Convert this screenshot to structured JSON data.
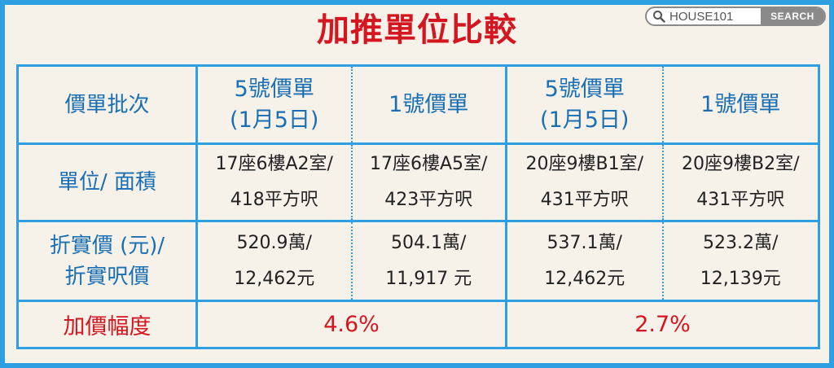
{
  "title": "加推單位比較",
  "search": {
    "brand": "HOUSE101",
    "button_label": "SEARCH",
    "icon": "search-icon"
  },
  "colors": {
    "frame": "#2e9fe0",
    "title": "#d3161f",
    "header_text": "#1a6fb4",
    "background": "#f6f1e9"
  },
  "table": {
    "header": {
      "label": "價單批次",
      "cols": [
        {
          "line1": "5號價單",
          "line2": "(1月5日)"
        },
        {
          "line1": "1號價單",
          "line2": ""
        },
        {
          "line1": "5號價單",
          "line2": "(1月5日)"
        },
        {
          "line1": "1號價單",
          "line2": ""
        }
      ]
    },
    "unit_row": {
      "label": "單位/ 面積",
      "cells": [
        {
          "line1": "17座6樓A2室/",
          "line2": "418平方呎"
        },
        {
          "line1": "17座6樓A5室/",
          "line2": "423平方呎"
        },
        {
          "line1": "20座9樓B1室/",
          "line2": "431平方呎"
        },
        {
          "line1": "20座9樓B2室/",
          "line2": "431平方呎"
        }
      ]
    },
    "price_row": {
      "label_line1": "折實價 (元)/",
      "label_line2": "折實呎價",
      "cells": [
        {
          "line1": "520.9萬/",
          "line2": "12,462元"
        },
        {
          "line1": "504.1萬/",
          "line2": "11,917 元"
        },
        {
          "line1": "537.1萬/",
          "line2": "12,462元"
        },
        {
          "line1": "523.2萬/",
          "line2": "12,139元"
        }
      ]
    },
    "increase_row": {
      "label": "加價幅度",
      "values": [
        "4.6%",
        "2.7%"
      ]
    }
  }
}
